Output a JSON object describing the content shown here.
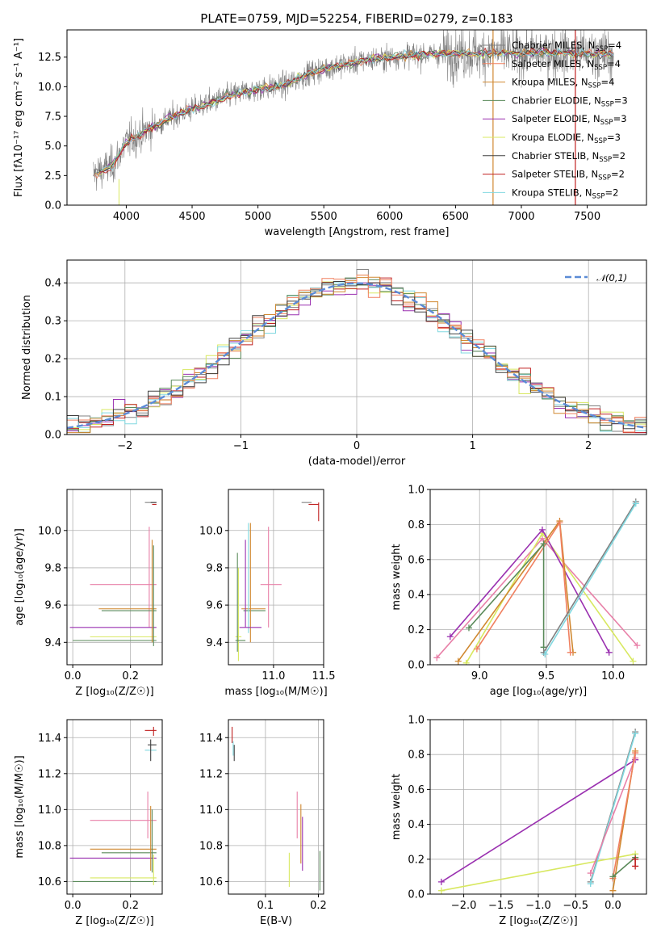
{
  "title": "PLATE=0759, MJD=52254, FIBERID=0279, z=0.183",
  "colors": {
    "chabrier_miles": "#808080",
    "salpeter_miles": "#f08060",
    "kroupa_miles": "#d08830",
    "chabrier_elodie": "#5a8a5a",
    "salpeter_elodie": "#9a30b0",
    "kroupa_elodie": "#d8e860",
    "chabrier_stelib": "#404040",
    "salpeter_stelib": "#c02020",
    "kroupa_stelib": "#80d8e0",
    "pink": "#e880a8",
    "normal": "#5b8bd6"
  },
  "chart_data": [
    {
      "type": "line",
      "id": "spectrum",
      "title": "PLATE=0759, MJD=52254, FIBERID=0279, z=0.183",
      "xlabel": "wavelength [Angstrom, rest frame]",
      "ylabel": "Flux [fλ10⁻¹⁷ erg cm⁻² s⁻¹ A⁻¹]",
      "xlim": [
        3550,
        7950
      ],
      "ylim": [
        0,
        14.8
      ],
      "xticks": [
        4000,
        4500,
        5000,
        5500,
        6000,
        6500,
        7000,
        7500
      ],
      "yticks": [
        0.0,
        2.5,
        5.0,
        7.5,
        10.0,
        12.5
      ],
      "legend_position": "right",
      "series": [
        {
          "name": "Chabrier MILES, N_SSP=4"
        },
        {
          "name": "Salpeter MILES, N_SSP=4"
        },
        {
          "name": "Kroupa MILES, N_SSP=4"
        },
        {
          "name": "Chabrier ELODIE, N_SSP=3"
        },
        {
          "name": "Salpeter ELODIE, N_SSP=3"
        },
        {
          "name": "Kroupa ELODIE, N_SSP=3"
        },
        {
          "name": "Chabrier STELIB, N_SSP=2"
        },
        {
          "name": "Salpeter STELIB, N_SSP=2"
        },
        {
          "name": "Kroupa STELIB, N_SSP=2"
        }
      ],
      "continuum": [
        [
          3750,
          2.6
        ],
        [
          3900,
          3.4
        ],
        [
          4000,
          5.3
        ],
        [
          4200,
          6.6
        ],
        [
          4400,
          7.7
        ],
        [
          4600,
          8.5
        ],
        [
          4800,
          9.3
        ],
        [
          5000,
          9.8
        ],
        [
          5200,
          10.1
        ],
        [
          5400,
          11.2
        ],
        [
          5600,
          11.8
        ],
        [
          5800,
          12.2
        ],
        [
          6000,
          12.5
        ],
        [
          6200,
          12.7
        ],
        [
          6400,
          12.8
        ],
        [
          6600,
          12.8
        ],
        [
          6800,
          12.9
        ],
        [
          7000,
          12.8
        ],
        [
          7200,
          12.9
        ],
        [
          7400,
          12.8
        ],
        [
          7600,
          12.8
        ],
        [
          7700,
          12.7
        ]
      ]
    },
    {
      "type": "histogram",
      "id": "residuals",
      "xlabel": "(data-model)/error",
      "ylabel": "Normed distribution",
      "xlim": [
        -2.5,
        2.5
      ],
      "ylim": [
        0,
        0.46
      ],
      "xticks": [
        -2,
        -1,
        0,
        1,
        2
      ],
      "yticks": [
        0.0,
        0.1,
        0.2,
        0.3,
        0.4
      ],
      "grid": true,
      "legend": "𝒩(0,1)",
      "legend_position": "top-right"
    },
    {
      "type": "scatter",
      "id": "age_vs_Z",
      "xlabel": "Z [log₁₀(Z/Z☉)]",
      "ylabel": "age  [log₁₀(age/yr)]",
      "xlim": [
        -0.02,
        0.31
      ],
      "ylim": [
        9.28,
        10.22
      ],
      "xticks": [
        0.0,
        0.2
      ],
      "yticks": [
        9.4,
        9.6,
        9.8,
        10.0
      ],
      "grid": true,
      "errorbars": [
        {
          "color": "chabrier_miles",
          "x": [
            0.25,
            0.29
          ],
          "y": [
            10.15,
            10.15
          ]
        },
        {
          "color": "chabrier_stelib",
          "x": [
            0.27,
            0.29
          ],
          "y": [
            10.15,
            10.15
          ]
        },
        {
          "color": "salpeter_stelib",
          "x": [
            0.275,
            0.29
          ],
          "y": [
            10.14,
            10.14
          ]
        },
        {
          "color": "pink",
          "x": [
            0.06,
            0.29
          ],
          "y": [
            9.71,
            9.71
          ]
        },
        {
          "color": "pink",
          "x": [
            0.265,
            0.265
          ],
          "y": [
            9.48,
            10.02
          ]
        },
        {
          "color": "kroupa_miles",
          "x": [
            0.09,
            0.29
          ],
          "y": [
            9.58,
            9.58
          ]
        },
        {
          "color": "chabrier_elodie",
          "x": [
            0.1,
            0.29
          ],
          "y": [
            9.57,
            9.57
          ]
        },
        {
          "color": "salpeter_elodie",
          "x": [
            -0.01,
            0.29
          ],
          "y": [
            9.48,
            9.48
          ]
        },
        {
          "color": "kroupa_elodie",
          "x": [
            0.06,
            0.29
          ],
          "y": [
            9.43,
            9.43
          ]
        },
        {
          "color": "chabrier_elodie",
          "x": [
            0.0,
            0.29
          ],
          "y": [
            9.41,
            9.41
          ]
        },
        {
          "color": "kroupa_miles",
          "x": [
            0.275,
            0.275
          ],
          "y": [
            9.4,
            9.95
          ]
        },
        {
          "color": "chabrier_elodie",
          "x": [
            0.28,
            0.28
          ],
          "y": [
            9.38,
            9.92
          ]
        }
      ]
    },
    {
      "type": "scatter",
      "id": "age_vs_mass",
      "xlabel": "mass [log₁₀(M/M☉)]",
      "xlim": [
        10.55,
        11.5
      ],
      "ylim": [
        9.28,
        10.22
      ],
      "xticks": [
        11.0,
        11.5
      ],
      "yticks": [
        9.4,
        9.6,
        9.8,
        10.0
      ],
      "grid": true,
      "errorbars": [
        {
          "color": "chabrier_miles",
          "x": [
            11.28,
            11.38
          ],
          "y": [
            10.15,
            10.15
          ]
        },
        {
          "color": "salpeter_stelib",
          "x": [
            11.35,
            11.45
          ],
          "y": [
            10.14,
            10.14
          ]
        },
        {
          "color": "salpeter_stelib",
          "x": [
            11.45,
            11.45
          ],
          "y": [
            10.05,
            10.15
          ]
        },
        {
          "color": "pink",
          "x": [
            10.87,
            11.08
          ],
          "y": [
            9.71,
            9.71
          ]
        },
        {
          "color": "pink",
          "x": [
            10.95,
            10.95
          ],
          "y": [
            9.48,
            10.02
          ]
        },
        {
          "color": "kroupa_miles",
          "x": [
            10.68,
            10.92
          ],
          "y": [
            9.58,
            9.58
          ]
        },
        {
          "color": "chabrier_elodie",
          "x": [
            10.7,
            10.92
          ],
          "y": [
            9.57,
            9.57
          ]
        },
        {
          "color": "kroupa_miles",
          "x": [
            10.77,
            10.77
          ],
          "y": [
            9.4,
            10.04
          ]
        },
        {
          "color": "salpeter_elodie",
          "x": [
            10.72,
            10.72
          ],
          "y": [
            9.48,
            9.95
          ]
        },
        {
          "color": "kroupa_stelib",
          "x": [
            10.75,
            10.75
          ],
          "y": [
            9.45,
            10.04
          ]
        },
        {
          "color": "salpeter_elodie",
          "x": [
            10.66,
            10.88
          ],
          "y": [
            9.48,
            9.48
          ]
        },
        {
          "color": "kroupa_elodie",
          "x": [
            10.62,
            10.68
          ],
          "y": [
            9.43,
            9.43
          ]
        },
        {
          "color": "kroupa_elodie",
          "x": [
            10.65,
            10.65
          ],
          "y": [
            9.3,
            9.8
          ]
        },
        {
          "color": "chabrier_elodie",
          "x": [
            10.62,
            10.72
          ],
          "y": [
            9.41,
            9.41
          ]
        },
        {
          "color": "chabrier_elodie",
          "x": [
            10.64,
            10.64
          ],
          "y": [
            9.35,
            9.88
          ]
        }
      ]
    },
    {
      "type": "line",
      "id": "weight_vs_age",
      "xlabel": "age  [log₁₀(age/yr)]",
      "ylabel": "mass weight",
      "xlim": [
        8.63,
        10.25
      ],
      "ylim": [
        0,
        1.0
      ],
      "xticks": [
        9.0,
        9.5,
        10.0
      ],
      "yticks": [
        0.0,
        0.2,
        0.4,
        0.6,
        0.8,
        1.0
      ],
      "grid": true,
      "series": [
        {
          "color": "pink",
          "x": [
            8.68,
            9.47,
            10.18
          ],
          "y": [
            0.04,
            0.72,
            0.11
          ]
        },
        {
          "color": "kroupa_elodie",
          "x": [
            8.9,
            9.47,
            10.15
          ],
          "y": [
            0.01,
            0.75,
            0.02
          ]
        },
        {
          "color": "salpeter_elodie",
          "x": [
            8.78,
            9.47,
            9.97
          ],
          "y": [
            0.16,
            0.77,
            0.07
          ]
        },
        {
          "color": "kroupa_miles",
          "x": [
            8.84,
            9.6,
            9.7
          ],
          "y": [
            0.02,
            0.82,
            0.07
          ]
        },
        {
          "color": "salpeter_miles",
          "x": [
            8.98,
            9.6,
            9.68
          ],
          "y": [
            0.09,
            0.81,
            0.07
          ]
        },
        {
          "color": "chabrier_elodie",
          "x": [
            8.92,
            9.48,
            9.48
          ],
          "y": [
            0.21,
            0.69,
            0.1
          ]
        },
        {
          "color": "chabrier_miles",
          "x": [
            9.48,
            10.17
          ],
          "y": [
            0.07,
            0.93
          ]
        },
        {
          "color": "kroupa_stelib",
          "x": [
            9.49,
            10.17
          ],
          "y": [
            0.06,
            0.92
          ]
        }
      ]
    },
    {
      "type": "scatter",
      "id": "mass_vs_Z",
      "xlabel": "Z [log₁₀(Z/Z☉)]",
      "ylabel": "mass [log₁₀(M/M☉)]",
      "xlim": [
        -0.02,
        0.31
      ],
      "ylim": [
        10.53,
        11.5
      ],
      "xticks": [
        0.0,
        0.2
      ],
      "yticks": [
        10.6,
        10.8,
        11.0,
        11.2,
        11.4
      ],
      "grid": true,
      "errorbars": [
        {
          "color": "salpeter_stelib",
          "x": [
            0.25,
            0.29
          ],
          "y": [
            11.44,
            11.44
          ]
        },
        {
          "color": "salpeter_stelib",
          "x": [
            0.28,
            0.28
          ],
          "y": [
            11.41,
            11.46
          ]
        },
        {
          "color": "chabrier_stelib",
          "x": [
            0.26,
            0.29
          ],
          "y": [
            11.36,
            11.36
          ]
        },
        {
          "color": "kroupa_stelib",
          "x": [
            0.25,
            0.29
          ],
          "y": [
            11.33,
            11.33
          ]
        },
        {
          "color": "chabrier_stelib",
          "x": [
            0.27,
            0.27
          ],
          "y": [
            11.27,
            11.39
          ]
        },
        {
          "color": "pink",
          "x": [
            0.06,
            0.29
          ],
          "y": [
            10.94,
            10.94
          ]
        },
        {
          "color": "pink",
          "x": [
            0.26,
            0.26
          ],
          "y": [
            10.84,
            11.1
          ]
        },
        {
          "color": "kroupa_miles",
          "x": [
            0.06,
            0.29
          ],
          "y": [
            10.78,
            10.78
          ]
        },
        {
          "color": "chabrier_elodie",
          "x": [
            0.1,
            0.29
          ],
          "y": [
            10.76,
            10.76
          ]
        },
        {
          "color": "salpeter_elodie",
          "x": [
            -0.01,
            0.29
          ],
          "y": [
            10.73,
            10.73
          ]
        },
        {
          "color": "kroupa_miles",
          "x": [
            0.27,
            0.27
          ],
          "y": [
            10.66,
            11.02
          ]
        },
        {
          "color": "chabrier_elodie",
          "x": [
            0.275,
            0.275
          ],
          "y": [
            10.65,
            11.0
          ]
        },
        {
          "color": "kroupa_elodie",
          "x": [
            0.06,
            0.29
          ],
          "y": [
            10.62,
            10.62
          ]
        },
        {
          "color": "chabrier_elodie",
          "x": [
            0.0,
            0.29
          ],
          "y": [
            10.6,
            10.6
          ]
        },
        {
          "color": "kroupa_elodie",
          "x": [
            0.28,
            0.28
          ],
          "y": [
            10.58,
            10.75
          ]
        }
      ]
    },
    {
      "type": "scatter",
      "id": "mass_vs_ebv",
      "xlabel": "E(B-V)",
      "xlim": [
        0.03,
        0.21
      ],
      "ylim": [
        10.53,
        11.5
      ],
      "xticks": [
        0.1,
        0.2
      ],
      "yticks": [
        10.6,
        10.8,
        11.0,
        11.2,
        11.4
      ],
      "grid": true,
      "errorbars": [
        {
          "color": "salpeter_stelib",
          "x": [
            0.037,
            0.037
          ],
          "y": [
            11.37,
            11.46
          ]
        },
        {
          "color": "kroupa_stelib",
          "x": [
            0.039,
            0.039
          ],
          "y": [
            11.3,
            11.38
          ]
        },
        {
          "color": "chabrier_stelib",
          "x": [
            0.041,
            0.041
          ],
          "y": [
            11.27,
            11.36
          ]
        },
        {
          "color": "pink",
          "x": [
            0.16,
            0.16
          ],
          "y": [
            10.84,
            11.1
          ]
        },
        {
          "color": "kroupa_miles",
          "x": [
            0.167,
            0.167
          ],
          "y": [
            10.7,
            11.03
          ]
        },
        {
          "color": "salpeter_elodie",
          "x": [
            0.17,
            0.17
          ],
          "y": [
            10.66,
            10.96
          ]
        },
        {
          "color": "kroupa_elodie",
          "x": [
            0.145,
            0.145
          ],
          "y": [
            10.57,
            10.76
          ]
        },
        {
          "color": "chabrier_elodie",
          "x": [
            0.203,
            0.203
          ],
          "y": [
            10.55,
            10.77
          ]
        }
      ]
    },
    {
      "type": "line",
      "id": "weight_vs_Z",
      "xlabel": "Z [log₁₀(Z/Z☉)]",
      "ylabel": "mass weight",
      "xlim": [
        -2.45,
        0.45
      ],
      "ylim": [
        0,
        1.0
      ],
      "xticks": [
        -2.0,
        -1.5,
        -1.0,
        -0.5,
        0.0
      ],
      "yticks": [
        0.0,
        0.2,
        0.4,
        0.6,
        0.8,
        1.0
      ],
      "grid": true,
      "series": [
        {
          "color": "salpeter_elodie",
          "x": [
            -2.3,
            0.3
          ],
          "y": [
            0.07,
            0.77
          ]
        },
        {
          "color": "kroupa_elodie",
          "x": [
            -2.3,
            0.3
          ],
          "y": [
            0.02,
            0.23
          ]
        },
        {
          "color": "chabrier_miles",
          "x": [
            -0.3,
            0.3
          ],
          "y": [
            0.07,
            0.93
          ]
        },
        {
          "color": "kroupa_stelib",
          "x": [
            -0.3,
            0.3
          ],
          "y": [
            0.06,
            0.92
          ]
        },
        {
          "color": "pink",
          "x": [
            -0.3,
            0.3
          ],
          "y": [
            0.12,
            0.78
          ]
        },
        {
          "color": "kroupa_miles",
          "x": [
            0.0,
            0.3
          ],
          "y": [
            0.02,
            0.82
          ]
        },
        {
          "color": "salpeter_miles",
          "x": [
            0.0,
            0.3
          ],
          "y": [
            0.09,
            0.81
          ]
        },
        {
          "color": "chabrier_elodie",
          "x": [
            0.0,
            0.3
          ],
          "y": [
            0.1,
            0.21
          ]
        },
        {
          "color": "salpeter_stelib",
          "x": [
            0.3,
            0.3
          ],
          "y": [
            0.16,
            0.2
          ]
        }
      ]
    }
  ]
}
